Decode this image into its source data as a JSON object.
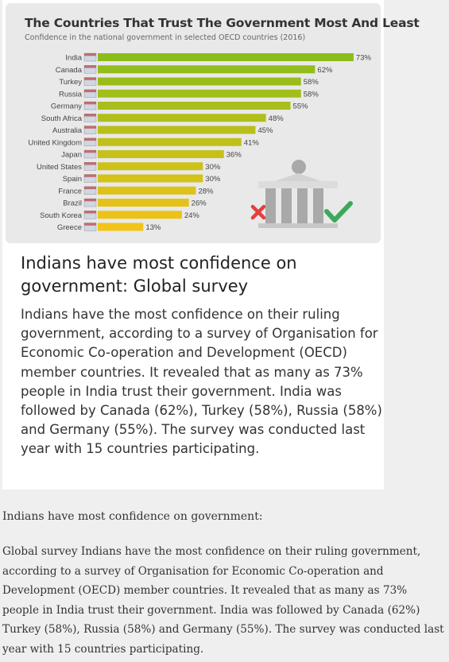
{
  "chart_data": {
    "type": "bar",
    "orientation": "horizontal",
    "title": "The Countries That Trust The Government Most And Least",
    "subtitle": "Confidence in the national government in selected OECD countries (2016)",
    "categories": [
      "India",
      "Canada",
      "Turkey",
      "Russia",
      "Germany",
      "South Africa",
      "Australia",
      "United Kingdom",
      "Japan",
      "United States",
      "Spain",
      "France",
      "Brazil",
      "South Korea",
      "Greece"
    ],
    "values": [
      73,
      62,
      58,
      58,
      55,
      48,
      45,
      41,
      36,
      30,
      30,
      28,
      26,
      24,
      13
    ],
    "labels": [
      "73%",
      "62%",
      "58%",
      "58%",
      "55%",
      "48%",
      "45%",
      "41%",
      "36%",
      "30%",
      "30%",
      "28%",
      "26%",
      "24%",
      "13%"
    ],
    "xlim": [
      0,
      80
    ],
    "grid": false,
    "colors": {
      "high": "#8cbc1c",
      "low": "#f2c418",
      "panel": "#e9e9e9"
    },
    "icons": [
      "flag-icon",
      "government-building-icon",
      "red-cross-icon",
      "green-check-icon"
    ]
  },
  "article": {
    "headline": "Indians have most confidence on government: Global survey",
    "summary": "Indians have the most confidence on their ruling government, according to a survey of Organisation for Economic Co-operation and Development (OECD) member countries. It revealed that as many as 73% people in India trust their government. India was followed by Canada (62%), Turkey (58%), Russia (58%) and Germany (55%). The survey was conducted last year with 15 countries participating."
  },
  "caption": {
    "title": "Indians have most confidence on government:",
    "body": "Global survey Indians have the most confidence on their ruling government, according to a survey of Organisation for Economic Co-operation and Development (OECD) member countries. It revealed that as many as 73% people in India trust their government. India was followed by Canada (62%) Turkey (58%), Russia (58%) and Germany (55%). The survey was conducted last year with 15 countries participating."
  }
}
